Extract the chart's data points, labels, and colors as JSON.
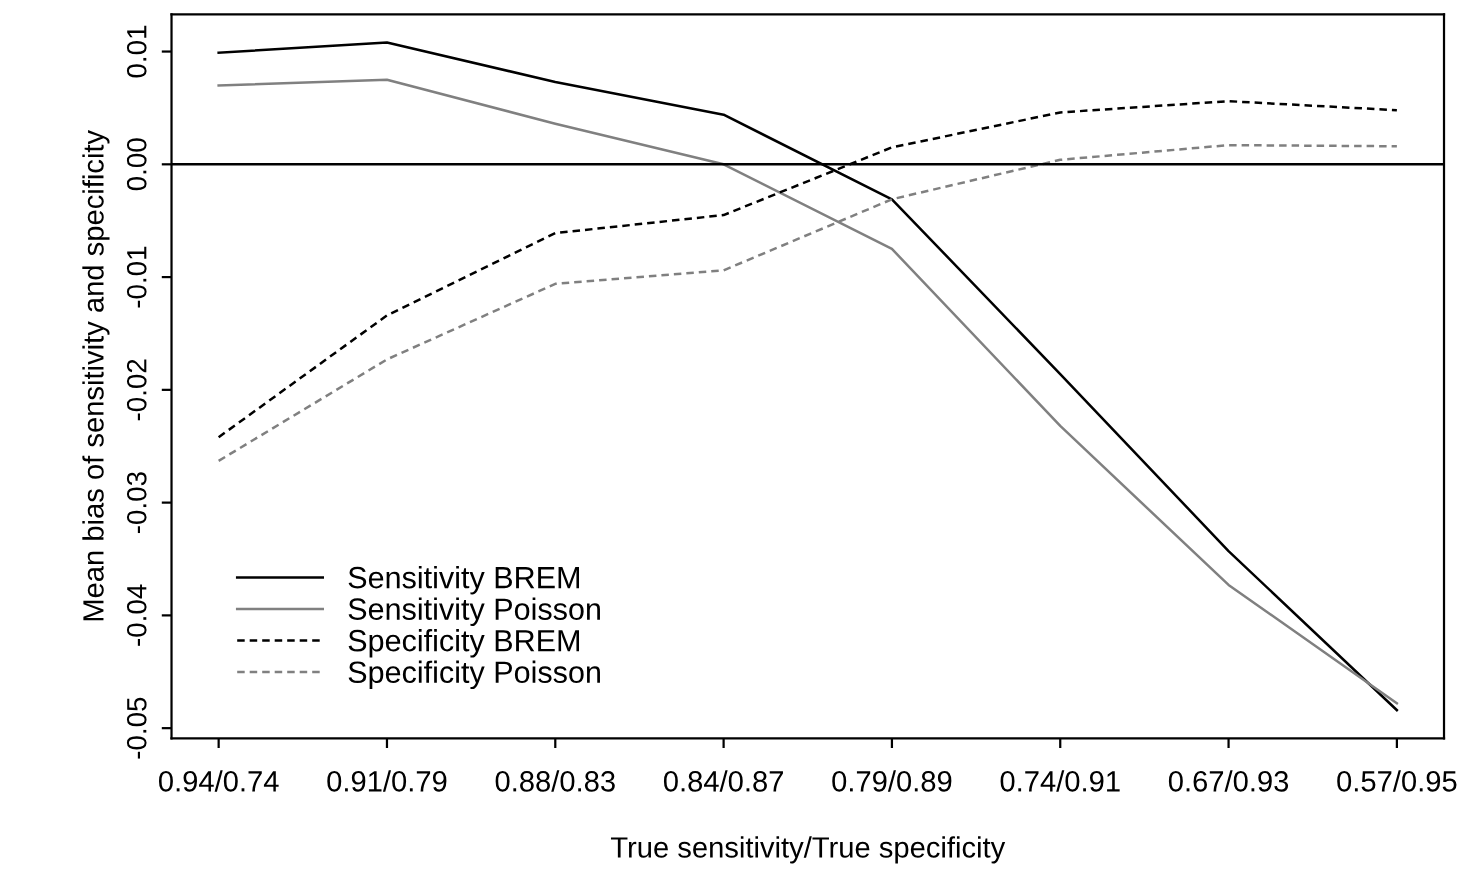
{
  "chart_data": {
    "type": "line",
    "xlabel": "True sensitivity/True specificity",
    "ylabel": "Mean bias of sensitivity and specificity",
    "categories": [
      "0.94/0.74",
      "0.91/0.79",
      "0.88/0.83",
      "0.84/0.87",
      "0.79/0.89",
      "0.74/0.91",
      "0.67/0.93",
      "0.57/0.95"
    ],
    "series": [
      {
        "name": "Sensitivity BREM",
        "color": "#000000",
        "line_style": "solid",
        "values": [
          0.0099,
          0.0108,
          0.0073,
          0.0044,
          -0.0031,
          -0.0186,
          -0.0343,
          -0.0484
        ]
      },
      {
        "name": "Sensitivity Poisson",
        "color": "#808080",
        "line_style": "solid",
        "values": [
          0.007,
          0.0075,
          0.0036,
          0.0,
          -0.0075,
          -0.0232,
          -0.0373,
          -0.0478
        ]
      },
      {
        "name": "Specificity BREM",
        "color": "#000000",
        "line_style": "dashed",
        "values": [
          -0.0242,
          -0.0134,
          -0.0061,
          -0.0045,
          0.0015,
          0.0046,
          0.0056,
          0.0048
        ]
      },
      {
        "name": "Specificity Poisson",
        "color": "#808080",
        "line_style": "dashed",
        "values": [
          -0.0263,
          -0.0173,
          -0.0106,
          -0.0094,
          -0.0031,
          0.0004,
          0.0017,
          0.0016
        ]
      }
    ],
    "ylim": [
      -0.0509,
      0.0133
    ],
    "yticks": [
      -0.05,
      -0.04,
      -0.03,
      -0.02,
      -0.01,
      {
        "value": 0,
        "label": "0.00"
      },
      0.01
    ],
    "ref_lines": [
      {
        "axis": "y",
        "value": 0,
        "color": "#000000"
      }
    ],
    "legend": "bottom left",
    "grid": false,
    "marker": "none"
  }
}
